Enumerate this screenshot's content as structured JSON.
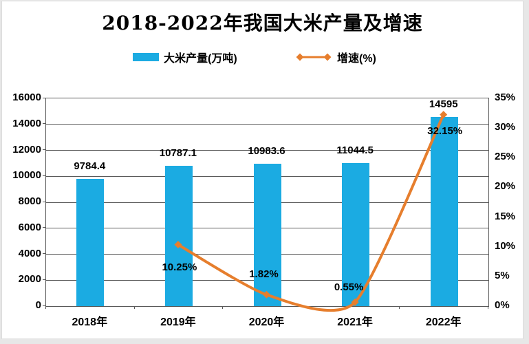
{
  "title": "2018-2022年我国大米产量及增速",
  "legend": [
    {
      "label": "大米产量(万吨)",
      "type": "bar",
      "color": "#1babe2"
    },
    {
      "label": "增速(%)",
      "type": "line",
      "color": "#e67e2d"
    }
  ],
  "chart_data": {
    "type": "combo",
    "title": "2018-2022年我国大米产量及增速",
    "categories": [
      "2018年",
      "2019年",
      "2020年",
      "2021年",
      "2022年"
    ],
    "series": [
      {
        "name": "大米产量(万吨)",
        "type": "bar",
        "color": "#1babe2",
        "values": [
          9784.4,
          10787.1,
          10983.6,
          11044.5,
          14595
        ],
        "labels": [
          "9784.4",
          "10787.1",
          "10983.6",
          "11044.5",
          "14595"
        ]
      },
      {
        "name": "增速(%)",
        "type": "line",
        "color": "#e67e2d",
        "smooth": true,
        "marker": "diamond",
        "values": [
          null,
          10.25,
          1.82,
          0.55,
          32.15
        ],
        "labels": [
          null,
          "10.25%",
          "1.82%",
          "0.55%",
          "32.15%"
        ],
        "label_offsets": [
          null,
          [
            2,
            33
          ],
          [
            -4,
            -29
          ],
          [
            -9,
            -21
          ],
          [
            2,
            24
          ]
        ]
      }
    ],
    "left_axis": {
      "min": 0,
      "max": 16000,
      "step": 2000,
      "tick_labels": [
        "0",
        "2000",
        "4000",
        "6000",
        "8000",
        "10000",
        "12000",
        "14000",
        "16000"
      ]
    },
    "right_axis": {
      "min": 0,
      "max": 35,
      "step": 5,
      "tick_labels": [
        "0%",
        "5%",
        "10%",
        "15%",
        "20%",
        "25%",
        "30%",
        "35%"
      ]
    },
    "grid": "horizontal",
    "legend_position": "top",
    "gridline_color": "#595959"
  }
}
